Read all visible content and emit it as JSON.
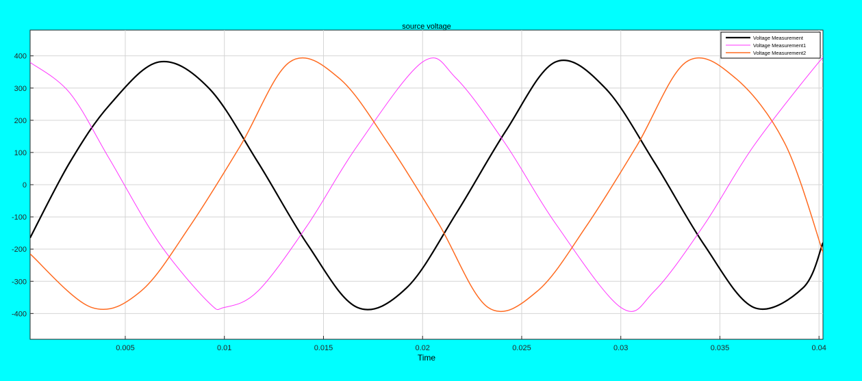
{
  "figure": {
    "background": "#00ffff"
  },
  "chart_data": {
    "type": "line",
    "title": "source voltage",
    "xlabel": "Time",
    "ylabel": "",
    "xlim": [
      0.0002,
      0.0402
    ],
    "ylim": [
      -480,
      480
    ],
    "grid": true,
    "legend_position": "top-right",
    "x_ticks": [
      0.005,
      0.01,
      0.015,
      0.02,
      0.025,
      0.03,
      0.035,
      0.04
    ],
    "x_tick_labels": [
      "0.005",
      "0.01",
      "0.015",
      "0.02",
      "0.025",
      "0.03",
      "0.035",
      "0.04"
    ],
    "y_ticks": [
      400,
      300,
      200,
      100,
      0,
      -100,
      -200,
      -300,
      -400
    ],
    "y_tick_labels": [
      "400",
      "300",
      "200",
      "100",
      "0",
      "-100",
      "-200",
      "-300",
      "-400"
    ],
    "series": [
      {
        "name": "Voltage Measurement",
        "color": "#000000",
        "x": [
          0.0002,
          0.0022,
          0.0042,
          0.0067,
          0.0092,
          0.0117,
          0.0142,
          0.0167,
          0.0192,
          0.0217,
          0.0242,
          0.0267,
          0.0292,
          0.0317,
          0.0342,
          0.0367,
          0.0392,
          0.0402
        ],
        "y": [
          -165,
          69,
          247,
          381,
          301,
          69,
          -186,
          -381,
          -320,
          -89,
          167,
          381,
          301,
          69,
          -186,
          -381,
          -320,
          -180
        ]
      },
      {
        "name": "Voltage Measurement1",
        "color": "#ff33ff",
        "x": [
          0.0002,
          0.0022,
          0.0042,
          0.0067,
          0.0092,
          0.01,
          0.0117,
          0.0142,
          0.0167,
          0.02,
          0.0217,
          0.0242,
          0.0267,
          0.03,
          0.0317,
          0.0342,
          0.0367,
          0.04,
          0.0402
        ],
        "y": [
          380,
          285,
          80,
          -180,
          -365,
          -381,
          -330,
          -125,
          120,
          381,
          330,
          125,
          -120,
          -381,
          -330,
          -125,
          120,
          381,
          380
        ]
      },
      {
        "name": "Voltage Measurement2",
        "color": "#ff6a1f",
        "x": [
          0.0002,
          0.0033,
          0.0058,
          0.0083,
          0.0108,
          0.0133,
          0.0158,
          0.0183,
          0.0208,
          0.0233,
          0.0258,
          0.0283,
          0.0308,
          0.0333,
          0.0358,
          0.0383,
          0.0402
        ],
        "y": [
          -215,
          -381,
          -330,
          -125,
          120,
          381,
          330,
          125,
          -120,
          -381,
          -330,
          -125,
          120,
          381,
          330,
          125,
          -210
        ]
      }
    ]
  }
}
